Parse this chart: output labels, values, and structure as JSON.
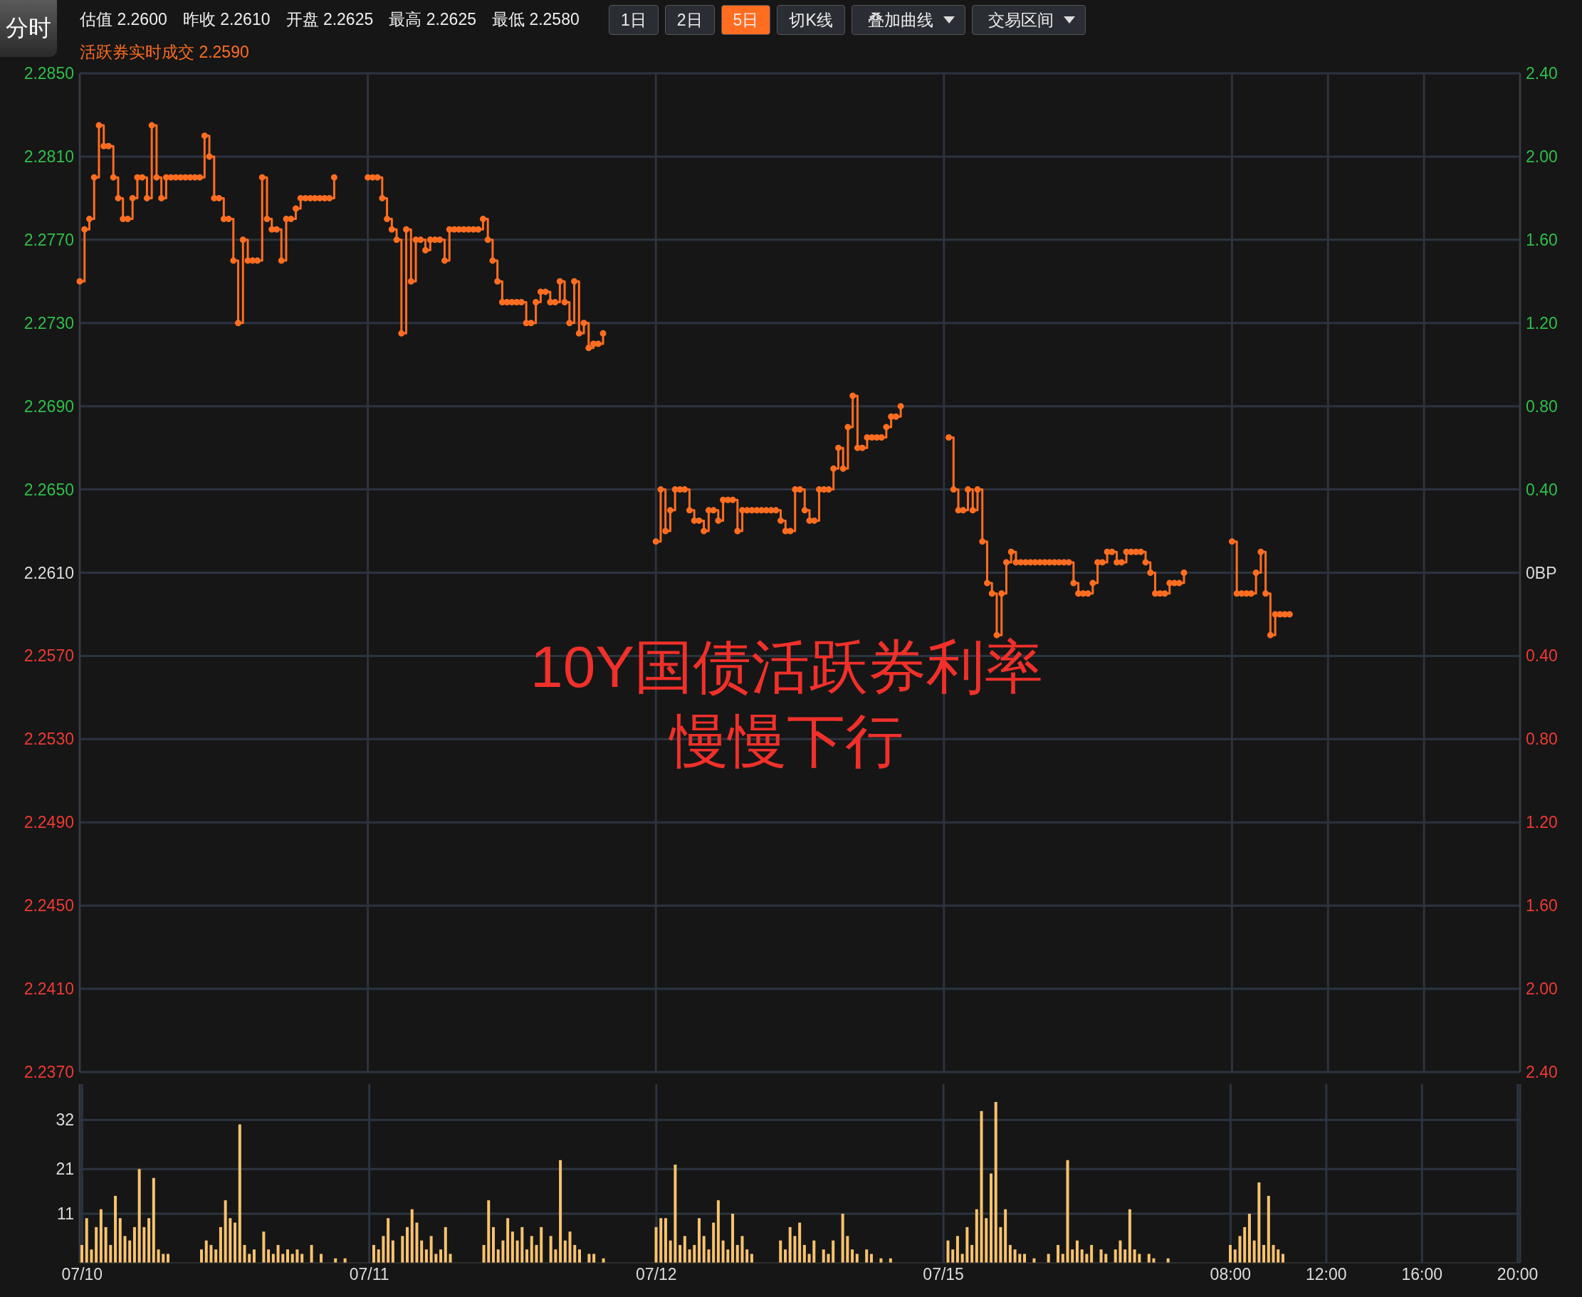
{
  "chart_data": [
    {
      "type": "step",
      "annotations": [
        "分时",
        "估值 2.2600",
        "昨收 2.2610",
        "开盘 2.2625",
        "最高 2.2625",
        "最低 2.2580",
        "1日",
        "2日",
        "5日",
        "切K线",
        "叠加曲线",
        "交易区间",
        "活跃券实时成交 2.2590",
        "10Y国债活跃券利率",
        "慢慢下行"
      ],
      "categories": [
        null,
        null,
        null,
        null,
        null,
        null,
        null,
        null,
        null,
        null,
        null,
        null,
        null,
        null,
        null,
        null,
        null,
        null,
        null,
        null,
        null,
        null,
        null,
        null,
        null,
        null,
        null,
        null,
        null,
        null,
        null,
        null,
        null,
        null,
        null,
        null,
        null,
        null,
        null,
        null,
        null,
        null,
        null,
        null,
        null,
        null,
        null,
        null,
        null,
        null,
        null,
        null,
        null,
        null,
        null,
        null,
        null,
        null,
        null,
        null,
        null,
        null,
        null,
        null,
        null,
        null,
        null,
        null,
        null,
        null,
        null,
        null,
        null,
        null,
        null,
        null,
        null,
        null,
        null,
        null,
        null,
        null,
        null,
        null,
        null,
        null,
        null,
        null,
        null,
        null,
        null,
        null,
        null,
        null,
        null,
        null,
        null,
        null,
        null,
        null,
        null,
        null,
        null,
        null,
        null,
        null,
        null,
        null,
        null,
        null,
        null,
        null,
        null,
        null,
        null,
        null,
        null,
        null,
        null,
        null,
        null,
        null,
        null,
        null,
        null,
        null,
        null,
        null,
        null,
        null,
        null,
        null,
        null,
        null,
        null,
        null,
        null,
        null,
        null,
        null,
        null,
        null,
        null,
        null,
        null,
        null,
        null,
        null,
        null,
        null,
        null,
        null,
        null,
        null,
        null,
        null,
        null,
        null,
        null,
        null,
        null,
        null,
        null,
        null,
        null,
        null,
        null,
        null,
        null,
        null,
        null,
        null,
        null,
        null,
        null,
        null,
        null,
        null,
        null,
        null,
        null,
        null,
        null,
        null,
        null,
        null,
        null,
        null,
        null,
        null,
        null,
        null,
        null,
        null,
        null,
        null,
        null,
        null,
        null,
        null,
        null,
        null,
        null,
        null,
        null,
        null,
        null,
        null,
        null,
        null,
        null,
        null,
        null,
        null,
        null,
        null,
        null,
        null,
        null,
        null,
        null,
        null,
        null,
        null,
        null,
        null,
        null,
        null,
        null,
        null,
        null,
        null,
        null,
        null,
        null,
        null,
        null,
        null,
        null,
        null,
        null,
        null,
        null,
        null,
        null,
        null,
        null,
        null,
        null,
        null,
        null,
        null,
        null,
        null,
        null,
        null,
        null,
        null,
        null,
        null,
        null,
        null,
        null,
        null,
        null,
        null,
        null,
        null,
        null,
        null,
        null,
        null,
        null,
        null,
        null,
        null,
        null,
        null,
        null,
        null,
        null,
        null,
        null,
        null,
        null,
        null,
        null,
        null,
        null,
        null,
        null,
        null,
        null,
        null,
        null,
        null,
        null,
        null,
        null,
        null,
        null
      ],
      "series": [
        {
          "color": "#ff6d21",
          "values": [
            2.275,
            2.2775,
            2.278,
            2.28,
            2.2825,
            2.2815,
            2.2815,
            2.28,
            2.279,
            2.278,
            2.278,
            2.279,
            2.28,
            2.28,
            2.279,
            2.2825,
            2.28,
            2.279,
            2.28,
            2.28,
            2.28,
            2.28,
            2.28,
            2.28,
            2.28,
            2.28,
            2.282,
            2.281,
            2.279,
            2.279,
            2.278,
            2.278,
            2.276,
            2.273,
            2.277,
            2.276,
            2.276,
            2.276,
            2.28,
            2.278,
            2.2775,
            2.2775,
            2.276,
            2.278,
            2.278,
            2.2785,
            2.279,
            2.279,
            2.279,
            2.279,
            2.279,
            2.279,
            2.279,
            2.28,
            null,
            null,
            null,
            null,
            null,
            null,
            2.28,
            2.28,
            2.28,
            2.279,
            2.278,
            2.2775,
            2.277,
            2.2725,
            2.2775,
            2.275,
            2.277,
            2.277,
            2.2765,
            2.277,
            2.277,
            2.277,
            2.276,
            2.2775,
            2.2775,
            2.2775,
            2.2775,
            2.2775,
            2.2775,
            2.2775,
            2.278,
            2.277,
            2.276,
            2.275,
            2.274,
            2.274,
            2.274,
            2.274,
            2.274,
            2.273,
            2.273,
            2.274,
            2.2745,
            2.2745,
            2.274,
            2.274,
            2.275,
            2.274,
            2.273,
            2.275,
            2.2725,
            2.273,
            2.2718,
            2.272,
            2.272,
            2.2725,
            null,
            null,
            null,
            null,
            null,
            null,
            null,
            null,
            null,
            null,
            2.2625,
            2.265,
            2.263,
            2.264,
            2.265,
            2.265,
            2.265,
            2.264,
            2.2635,
            2.2635,
            2.263,
            2.264,
            2.264,
            2.2635,
            2.2645,
            2.2645,
            2.2645,
            2.263,
            2.264,
            2.264,
            2.264,
            2.264,
            2.264,
            2.264,
            2.264,
            2.264,
            2.2635,
            2.263,
            2.263,
            2.265,
            2.265,
            2.264,
            2.2635,
            2.2635,
            2.265,
            2.265,
            2.265,
            2.266,
            2.267,
            2.266,
            2.268,
            2.2695,
            2.267,
            2.267,
            2.2675,
            2.2675,
            2.2675,
            2.2675,
            2.268,
            2.2685,
            2.2685,
            2.269,
            null,
            null,
            null,
            null,
            null,
            null,
            null,
            null,
            null,
            2.2675,
            2.265,
            2.264,
            2.264,
            2.265,
            2.264,
            2.265,
            2.2625,
            2.2605,
            2.26,
            2.258,
            2.26,
            2.2615,
            2.262,
            2.2615,
            2.2615,
            2.2615,
            2.2615,
            2.2615,
            2.2615,
            2.2615,
            2.2615,
            2.2615,
            2.2615,
            2.2615,
            2.2615,
            2.2605,
            2.26,
            2.26,
            2.26,
            2.2605,
            2.2615,
            2.2615,
            2.262,
            2.262,
            2.2615,
            2.2615,
            2.262,
            2.262,
            2.262,
            2.262,
            2.2615,
            2.261,
            2.26,
            2.26,
            2.26,
            2.2605,
            2.2605,
            2.2605,
            2.261,
            null,
            null,
            null,
            null,
            null,
            null,
            null,
            null,
            null,
            2.2625,
            2.26,
            2.26,
            2.26,
            2.26,
            2.261,
            2.262,
            2.26,
            2.258,
            2.259,
            2.259,
            2.259,
            2.259,
            null,
            null,
            null,
            null,
            null,
            null,
            null,
            null,
            null,
            null,
            null,
            null,
            null,
            null,
            null,
            null,
            null,
            null,
            null,
            null,
            null,
            null,
            null,
            null,
            null,
            null,
            null,
            null,
            null,
            null,
            null,
            null,
            null,
            null,
            null,
            null,
            null,
            null,
            null,
            null,
            null,
            null,
            null,
            null,
            null,
            null,
            null,
            null
          ]
        }
      ],
      "marker": "circle",
      "grid": true,
      "tick_labels": "y",
      "ylim": [
        2.237,
        2.285
      ],
      "yticks": [
        {
          "value": 2.237,
          "label": "2.2370"
        },
        {
          "value": 2.241,
          "label": "2.2410"
        },
        {
          "value": 2.245,
          "label": "2.2450"
        },
        {
          "value": 2.249,
          "label": "2.2490"
        },
        {
          "value": 2.253,
          "label": "2.2530"
        },
        {
          "value": 2.257,
          "label": "2.2570"
        },
        {
          "value": 2.261,
          "label": "2.2610"
        },
        {
          "value": 2.265,
          "label": "2.2650"
        },
        {
          "value": 2.269,
          "label": "2.2690"
        },
        {
          "value": 2.273,
          "label": "2.2730"
        },
        {
          "value": 2.277,
          "label": "2.2770"
        },
        {
          "value": 2.281,
          "label": "2.2810"
        },
        {
          "value": 2.285,
          "label": "2.2850"
        }
      ],
      "y2lim": [
        -2.4,
        2.4
      ],
      "y2ticks": [
        {
          "value": -2.4,
          "label": "2.40"
        },
        {
          "value": -2.0,
          "label": "2.00"
        },
        {
          "value": -1.6,
          "label": "1.60"
        },
        {
          "value": -1.2,
          "label": "1.20"
        },
        {
          "value": -0.8,
          "label": "0.80"
        },
        {
          "value": -0.4,
          "label": "0.40"
        },
        {
          "value": 0,
          "label": "0BP"
        },
        {
          "value": 0.4,
          "label": "0.40"
        },
        {
          "value": 0.8,
          "label": "0.80"
        },
        {
          "value": 1.2,
          "label": "1.20"
        },
        {
          "value": 1.6,
          "label": "1.60"
        },
        {
          "value": 2.0,
          "label": "2.00"
        },
        {
          "value": 2.4,
          "label": "2.40"
        }
      ]
    },
    {
      "type": "bar",
      "color": "#f9c36c",
      "grid": true,
      "categories": [
        "07/10",
        null,
        null,
        null,
        null,
        null,
        null,
        null,
        null,
        null,
        null,
        null,
        null,
        null,
        null,
        null,
        null,
        null,
        null,
        null,
        null,
        null,
        null,
        null,
        null,
        null,
        null,
        null,
        null,
        null,
        null,
        null,
        null,
        null,
        null,
        null,
        null,
        null,
        null,
        null,
        null,
        null,
        null,
        null,
        null,
        null,
        null,
        null,
        null,
        null,
        null,
        null,
        null,
        null,
        null,
        null,
        null,
        null,
        null,
        null,
        "07/11",
        null,
        null,
        null,
        null,
        null,
        null,
        null,
        null,
        null,
        null,
        null,
        null,
        null,
        null,
        null,
        null,
        null,
        null,
        null,
        null,
        null,
        null,
        null,
        null,
        null,
        null,
        null,
        null,
        null,
        null,
        null,
        null,
        null,
        null,
        null,
        null,
        null,
        null,
        null,
        null,
        null,
        null,
        null,
        null,
        null,
        null,
        null,
        null,
        null,
        null,
        null,
        null,
        null,
        null,
        null,
        null,
        null,
        null,
        null,
        "07/12",
        null,
        null,
        null,
        null,
        null,
        null,
        null,
        null,
        null,
        null,
        null,
        null,
        null,
        null,
        null,
        null,
        null,
        null,
        null,
        null,
        null,
        null,
        null,
        null,
        null,
        null,
        null,
        null,
        null,
        null,
        null,
        null,
        null,
        null,
        null,
        null,
        null,
        null,
        null,
        null,
        null,
        null,
        null,
        null,
        null,
        null,
        null,
        null,
        null,
        null,
        null,
        null,
        null,
        null,
        null,
        null,
        null,
        null,
        null,
        "07/15",
        null,
        null,
        null,
        null,
        null,
        null,
        null,
        null,
        null,
        null,
        null,
        null,
        null,
        null,
        null,
        null,
        null,
        null,
        null,
        null,
        null,
        null,
        null,
        null,
        null,
        null,
        null,
        null,
        null,
        null,
        null,
        null,
        null,
        null,
        null,
        null,
        null,
        null,
        null,
        null,
        null,
        null,
        null,
        null,
        null,
        null,
        null,
        null,
        null,
        null,
        null,
        null,
        null,
        null,
        null,
        null,
        null,
        null,
        null,
        "08:00",
        null,
        null,
        null,
        null,
        null,
        null,
        null,
        null,
        null,
        null,
        null,
        null,
        null,
        null,
        null,
        null,
        null,
        null,
        null,
        "12:00",
        null,
        null,
        null,
        null,
        null,
        null,
        null,
        null,
        null,
        null,
        null,
        null,
        null,
        null,
        null,
        null,
        null,
        null,
        null,
        "16:00",
        null,
        null,
        null,
        null,
        null,
        null,
        null,
        null,
        null,
        null,
        null,
        null,
        null,
        null,
        null,
        null,
        null,
        null,
        null,
        "20:00"
      ],
      "values": [
        4,
        10,
        3,
        8,
        12,
        8,
        4,
        15,
        10,
        6,
        5,
        8,
        21,
        8,
        10,
        19,
        3,
        2,
        2,
        null,
        null,
        null,
        null,
        null,
        null,
        3,
        5,
        4,
        3,
        8,
        14,
        10,
        9,
        31,
        4,
        2,
        3,
        null,
        7,
        3,
        2,
        4,
        2,
        3,
        2,
        3,
        2,
        null,
        4,
        null,
        2,
        null,
        null,
        1,
        null,
        1,
        null,
        null,
        null,
        null,
        null,
        4,
        3,
        6,
        10,
        5,
        null,
        6,
        8,
        12,
        9,
        5,
        3,
        6,
        2,
        3,
        8,
        2,
        null,
        null,
        null,
        null,
        null,
        null,
        4,
        14,
        8,
        3,
        5,
        10,
        7,
        5,
        8,
        3,
        6,
        4,
        8,
        null,
        6,
        3,
        23,
        5,
        7,
        4,
        3,
        null,
        2,
        2,
        null,
        1,
        null,
        null,
        null,
        null,
        null,
        null,
        null,
        null,
        null,
        null,
        8,
        10,
        10,
        5,
        22,
        4,
        6,
        3,
        4,
        10,
        6,
        3,
        9,
        14,
        5,
        3,
        11,
        4,
        6,
        3,
        2,
        null,
        null,
        null,
        null,
        null,
        5,
        3,
        8,
        6,
        9,
        4,
        2,
        5,
        null,
        3,
        2,
        5,
        null,
        11,
        6,
        3,
        2,
        null,
        3,
        2,
        null,
        1,
        null,
        1,
        null,
        null,
        null,
        null,
        null,
        null,
        null,
        null,
        null,
        null,
        null,
        5,
        3,
        6,
        2,
        8,
        4,
        12,
        34,
        10,
        20,
        36,
        8,
        12,
        4,
        3,
        2,
        2,
        null,
        1,
        null,
        null,
        2,
        null,
        4,
        2,
        23,
        3,
        5,
        3,
        2,
        4,
        null,
        3,
        2,
        null,
        3,
        5,
        3,
        12,
        3,
        2,
        null,
        2,
        1,
        null,
        null,
        1,
        null,
        null,
        null,
        null,
        null,
        null,
        null,
        null,
        null,
        null,
        null,
        null,
        4,
        3,
        6,
        8,
        11,
        5,
        18,
        4,
        15,
        4,
        3,
        2,
        null,
        null,
        null,
        null,
        null,
        null,
        null,
        null,
        null,
        null,
        null,
        null,
        null,
        null,
        null,
        null,
        null,
        null,
        null,
        null,
        null,
        null,
        null,
        null,
        null,
        null,
        null,
        null,
        null,
        null,
        null,
        null,
        null,
        null,
        null,
        null,
        null,
        null,
        null,
        null,
        null,
        null,
        null,
        null,
        null,
        null,
        null,
        null,
        null
      ],
      "ylim": [
        0,
        40
      ],
      "yticks": [
        11,
        21,
        32
      ]
    }
  ]
}
